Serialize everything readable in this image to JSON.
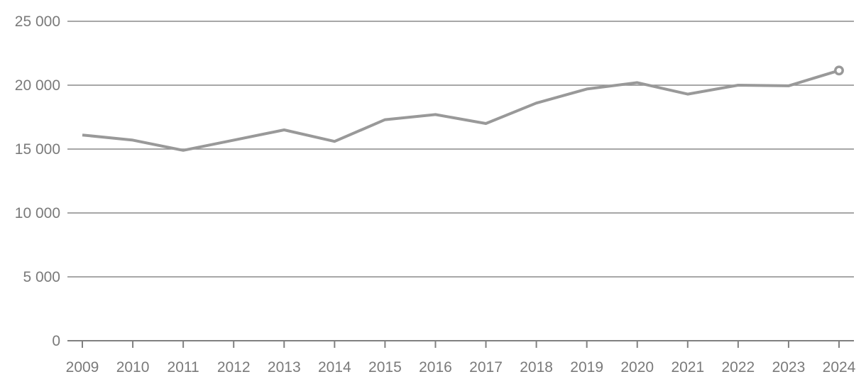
{
  "chart_data": {
    "type": "line",
    "title": "",
    "xlabel": "",
    "ylabel": "",
    "categories": [
      "2009",
      "2010",
      "2011",
      "2012",
      "2013",
      "2014",
      "2015",
      "2016",
      "2017",
      "2018",
      "2019",
      "2020",
      "2021",
      "2022",
      "2023",
      "2024"
    ],
    "values": [
      16100,
      15700,
      14900,
      15700,
      16500,
      15600,
      17300,
      17700,
      17000,
      18600,
      19700,
      20200,
      19300,
      20000,
      19950,
      21150
    ],
    "ylim": [
      0,
      25000
    ],
    "y_ticks": [
      0,
      5000,
      10000,
      15000,
      20000,
      25000
    ],
    "y_tick_labels": [
      "0",
      "5 000",
      "10 000",
      "15 000",
      "20 000",
      "25 000"
    ],
    "grid": true,
    "legend": false,
    "end_marker": "open-circle",
    "colors": {
      "line": "#999999",
      "gridline": "#8a8a8a",
      "axis": "#808080",
      "tick": "#808080",
      "label": "#7a7a7a",
      "marker_fill": "#ffffff",
      "background": "#ffffff"
    }
  }
}
